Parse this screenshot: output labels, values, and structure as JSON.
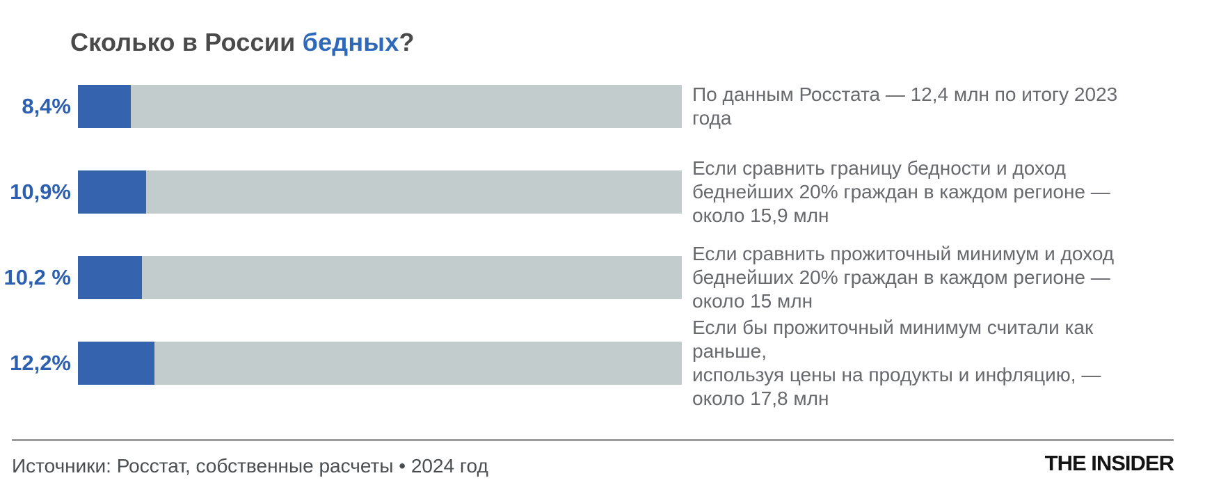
{
  "title": {
    "prefix": "Сколько в России ",
    "highlight": "бедных",
    "suffix": "?"
  },
  "colors": {
    "accent_blue": "#3563ae",
    "label_blue": "#2d5fb0",
    "title_blue": "#2e68b8",
    "track_gray": "#c2cccc",
    "title_gray": "#4a4a4a",
    "annotation_gray": "#67696c"
  },
  "footer": {
    "source": "Источники: Росстат, собственные расчеты • 2024 год",
    "logo": "THE INSIDER"
  },
  "chart_data": {
    "type": "bar",
    "title": "Сколько в России бедных?",
    "xlabel": "",
    "ylabel": "",
    "unit": "% населения",
    "xlim": [
      0,
      100
    ],
    "grid": false,
    "legend": false,
    "orientation": "horizontal",
    "rows": [
      {
        "label": "8,4%",
        "value": 8.4,
        "millions": "12,4 млн",
        "annotation": [
          "По данным Росстата — 12,4 млн по итогу 2023 года"
        ]
      },
      {
        "label": "10,9%",
        "value": 10.9,
        "millions": "15,9 млн",
        "annotation": [
          "Если сравнить границу бедности и доход",
          "беднейших 20% граждан в каждом регионе —",
          "около 15,9 млн"
        ]
      },
      {
        "label": "10,2 %",
        "value": 10.2,
        "millions": "15 млн",
        "annotation": [
          "Если сравнить прожиточный минимум и доход",
          "беднейших 20% граждан в каждом регионе —",
          "около 15 млн"
        ]
      },
      {
        "label": "12,2%",
        "value": 12.2,
        "millions": "17,8 млн",
        "annotation": [
          "Если бы прожиточный минимум считали как раньше,",
          "используя цены на продукты и инфляцию, —",
          "около 17,8 млн"
        ]
      }
    ]
  }
}
